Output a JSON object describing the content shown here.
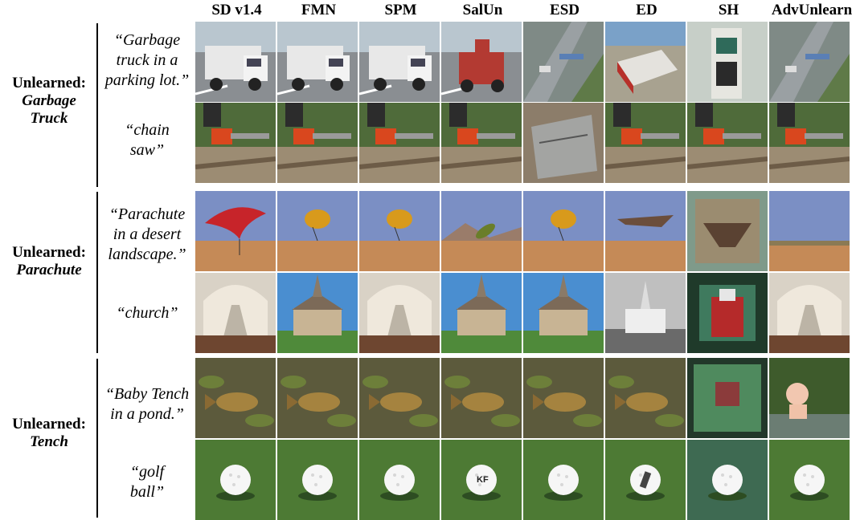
{
  "methods": [
    "SD v1.4",
    "FMN",
    "SPM",
    "SalUn",
    "ESD",
    "ED",
    "SH",
    "AdvUnlearn"
  ],
  "groups": [
    {
      "prefix": "Unlearned:",
      "concept_lines": [
        "Garbage",
        "Truck"
      ],
      "prompts": [
        {
          "lines": [
            "“Garbage",
            "truck in a",
            "parking lot.”"
          ],
          "image_subject": "garbage-truck"
        },
        {
          "lines": [
            "“chain",
            "saw”"
          ],
          "image_subject": "chainsaw"
        }
      ]
    },
    {
      "prefix": "Unlearned:",
      "concept_lines": [
        "Parachute"
      ],
      "prompts": [
        {
          "lines": [
            "“Parachute",
            "in a desert",
            "landscape.”"
          ],
          "image_subject": "parachute-desert"
        },
        {
          "lines": [
            "“church”"
          ],
          "image_subject": "church"
        }
      ]
    },
    {
      "prefix": "Unlearned:",
      "concept_lines": [
        "Tench"
      ],
      "prompts": [
        {
          "lines": [
            "“Baby Tench",
            "in a pond.”"
          ],
          "image_subject": "tench-pond"
        },
        {
          "lines": [
            "“golf",
            "ball”"
          ],
          "image_subject": "golf-ball"
        }
      ]
    }
  ],
  "colors": {
    "sky": "#7b8fc4",
    "desert": "#c58a57",
    "grass": "#4d7a34",
    "water": "#5c5a3c",
    "truck_white": "#e8e8e8",
    "chainsaw_orange": "#d9471e"
  }
}
